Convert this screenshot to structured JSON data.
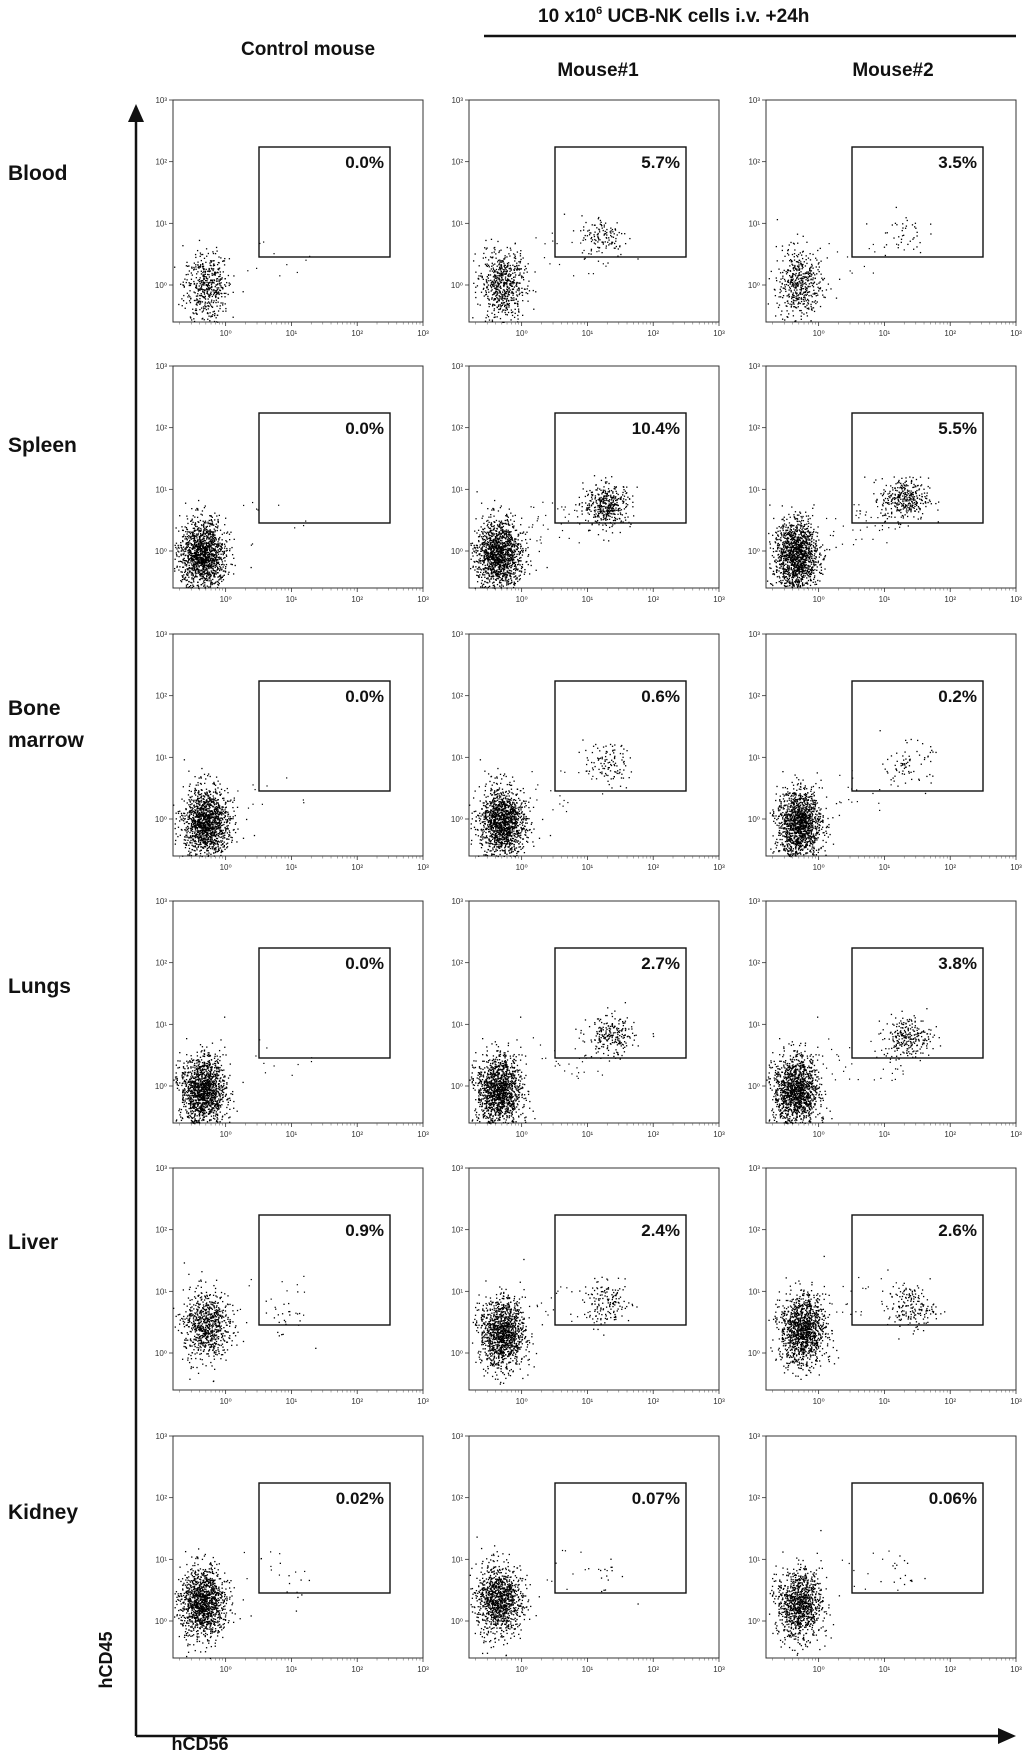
{
  "header": {
    "treatment_label": "10 x10",
    "treatment_exponent": "6",
    "treatment_suffix": " UCB-NK cells i.v. +24h"
  },
  "columns": [
    {
      "label": "Control mouse"
    },
    {
      "label": "Mouse#1"
    },
    {
      "label": "Mouse#2"
    }
  ],
  "rows": [
    {
      "label_lines": [
        "Blood"
      ]
    },
    {
      "label_lines": [
        "Spleen"
      ]
    },
    {
      "label_lines": [
        "Bone",
        "marrow"
      ]
    },
    {
      "label_lines": [
        "Lungs"
      ]
    },
    {
      "label_lines": [
        "Liver"
      ]
    },
    {
      "label_lines": [
        "Kidney"
      ]
    }
  ],
  "axes": {
    "x_label": "hCD56",
    "y_label": "hCD45",
    "x_ticks": [
      "10⁰",
      "10¹",
      "10²",
      "10³"
    ],
    "y_ticks": [
      "10⁰",
      "10¹",
      "10²",
      "10³"
    ]
  },
  "chart_data": {
    "type": "scatter",
    "description_axes": {
      "x": "hCD56",
      "y": "hCD45",
      "scale": "log"
    },
    "x_range_log10": [
      -0.8,
      3.0
    ],
    "y_range_log10": [
      -0.6,
      3.0
    ],
    "gate_label_units": "percent of cells in gate",
    "panels": [
      {
        "row": "Blood",
        "column": "Control mouse",
        "gate_percent": "0.0%",
        "neg_density": 0.35,
        "neg_center": [
          -0.3,
          0.05
        ],
        "pos_density": 0.0,
        "pos_center": [
          1.2,
          0.8
        ]
      },
      {
        "row": "Blood",
        "column": "Mouse#1",
        "gate_percent": "5.7%",
        "neg_density": 0.45,
        "neg_center": [
          -0.3,
          0.05
        ],
        "pos_density": 0.25,
        "pos_center": [
          1.25,
          0.8
        ]
      },
      {
        "row": "Blood",
        "column": "Mouse#2",
        "gate_percent": "3.5%",
        "neg_density": 0.35,
        "neg_center": [
          -0.3,
          0.1
        ],
        "pos_density": 0.08,
        "pos_center": [
          1.25,
          0.85
        ]
      },
      {
        "row": "Spleen",
        "column": "Control mouse",
        "gate_percent": "0.0%",
        "neg_density": 1.0,
        "neg_center": [
          -0.35,
          0.0
        ],
        "pos_density": 0.0,
        "pos_center": [
          1.2,
          0.8
        ]
      },
      {
        "row": "Spleen",
        "column": "Mouse#1",
        "gate_percent": "10.4%",
        "neg_density": 1.0,
        "neg_center": [
          -0.35,
          0.0
        ],
        "pos_density": 0.8,
        "pos_center": [
          1.3,
          0.75
        ]
      },
      {
        "row": "Spleen",
        "column": "Mouse#2",
        "gate_percent": "5.5%",
        "neg_density": 1.0,
        "neg_center": [
          -0.35,
          0.0
        ],
        "pos_density": 0.7,
        "pos_center": [
          1.3,
          0.85
        ]
      },
      {
        "row": "Bone marrow",
        "column": "Control mouse",
        "gate_percent": "0.0%",
        "neg_density": 1.0,
        "neg_center": [
          -0.3,
          0.0
        ],
        "pos_density": 0.0,
        "pos_center": [
          1.2,
          0.8
        ]
      },
      {
        "row": "Bone marrow",
        "column": "Mouse#1",
        "gate_percent": "0.6%",
        "neg_density": 1.0,
        "neg_center": [
          -0.3,
          0.0
        ],
        "pos_density": 0.22,
        "pos_center": [
          1.3,
          0.9
        ]
      },
      {
        "row": "Bone marrow",
        "column": "Mouse#2",
        "gate_percent": "0.2%",
        "neg_density": 1.0,
        "neg_center": [
          -0.3,
          0.0
        ],
        "pos_density": 0.15,
        "pos_center": [
          1.35,
          0.9
        ]
      },
      {
        "row": "Lungs",
        "column": "Control mouse",
        "gate_percent": "0.0%",
        "neg_density": 1.0,
        "neg_center": [
          -0.35,
          0.0
        ],
        "pos_density": 0.0,
        "pos_center": [
          1.2,
          0.8
        ]
      },
      {
        "row": "Lungs",
        "column": "Mouse#1",
        "gate_percent": "2.7%",
        "neg_density": 1.0,
        "neg_center": [
          -0.35,
          0.0
        ],
        "pos_density": 0.45,
        "pos_center": [
          1.35,
          0.8
        ]
      },
      {
        "row": "Lungs",
        "column": "Mouse#2",
        "gate_percent": "3.8%",
        "neg_density": 1.0,
        "neg_center": [
          -0.35,
          0.0
        ],
        "pos_density": 0.5,
        "pos_center": [
          1.35,
          0.8
        ]
      },
      {
        "row": "Liver",
        "column": "Control mouse",
        "gate_percent": "0.9%",
        "neg_density": 0.55,
        "neg_center": [
          -0.3,
          0.5
        ],
        "pos_density": 0.05,
        "pos_center": [
          0.9,
          0.6
        ]
      },
      {
        "row": "Liver",
        "column": "Mouse#1",
        "gate_percent": "2.4%",
        "neg_density": 0.9,
        "neg_center": [
          -0.3,
          0.4
        ],
        "pos_density": 0.3,
        "pos_center": [
          1.3,
          0.8
        ]
      },
      {
        "row": "Liver",
        "column": "Mouse#2",
        "gate_percent": "2.6%",
        "neg_density": 0.9,
        "neg_center": [
          -0.25,
          0.45
        ],
        "pos_density": 0.35,
        "pos_center": [
          1.4,
          0.75
        ]
      },
      {
        "row": "Kidney",
        "column": "Control mouse",
        "gate_percent": "0.02%",
        "neg_density": 0.95,
        "neg_center": [
          -0.35,
          0.35
        ],
        "pos_density": 0.02,
        "pos_center": [
          1.0,
          0.5
        ]
      },
      {
        "row": "Kidney",
        "column": "Mouse#1",
        "gate_percent": "0.07%",
        "neg_density": 0.8,
        "neg_center": [
          -0.35,
          0.4
        ],
        "pos_density": 0.03,
        "pos_center": [
          1.3,
          0.8
        ]
      },
      {
        "row": "Kidney",
        "column": "Mouse#2",
        "gate_percent": "0.06%",
        "neg_density": 0.75,
        "neg_center": [
          -0.3,
          0.35
        ],
        "pos_density": 0.03,
        "pos_center": [
          1.3,
          0.8
        ]
      }
    ]
  }
}
